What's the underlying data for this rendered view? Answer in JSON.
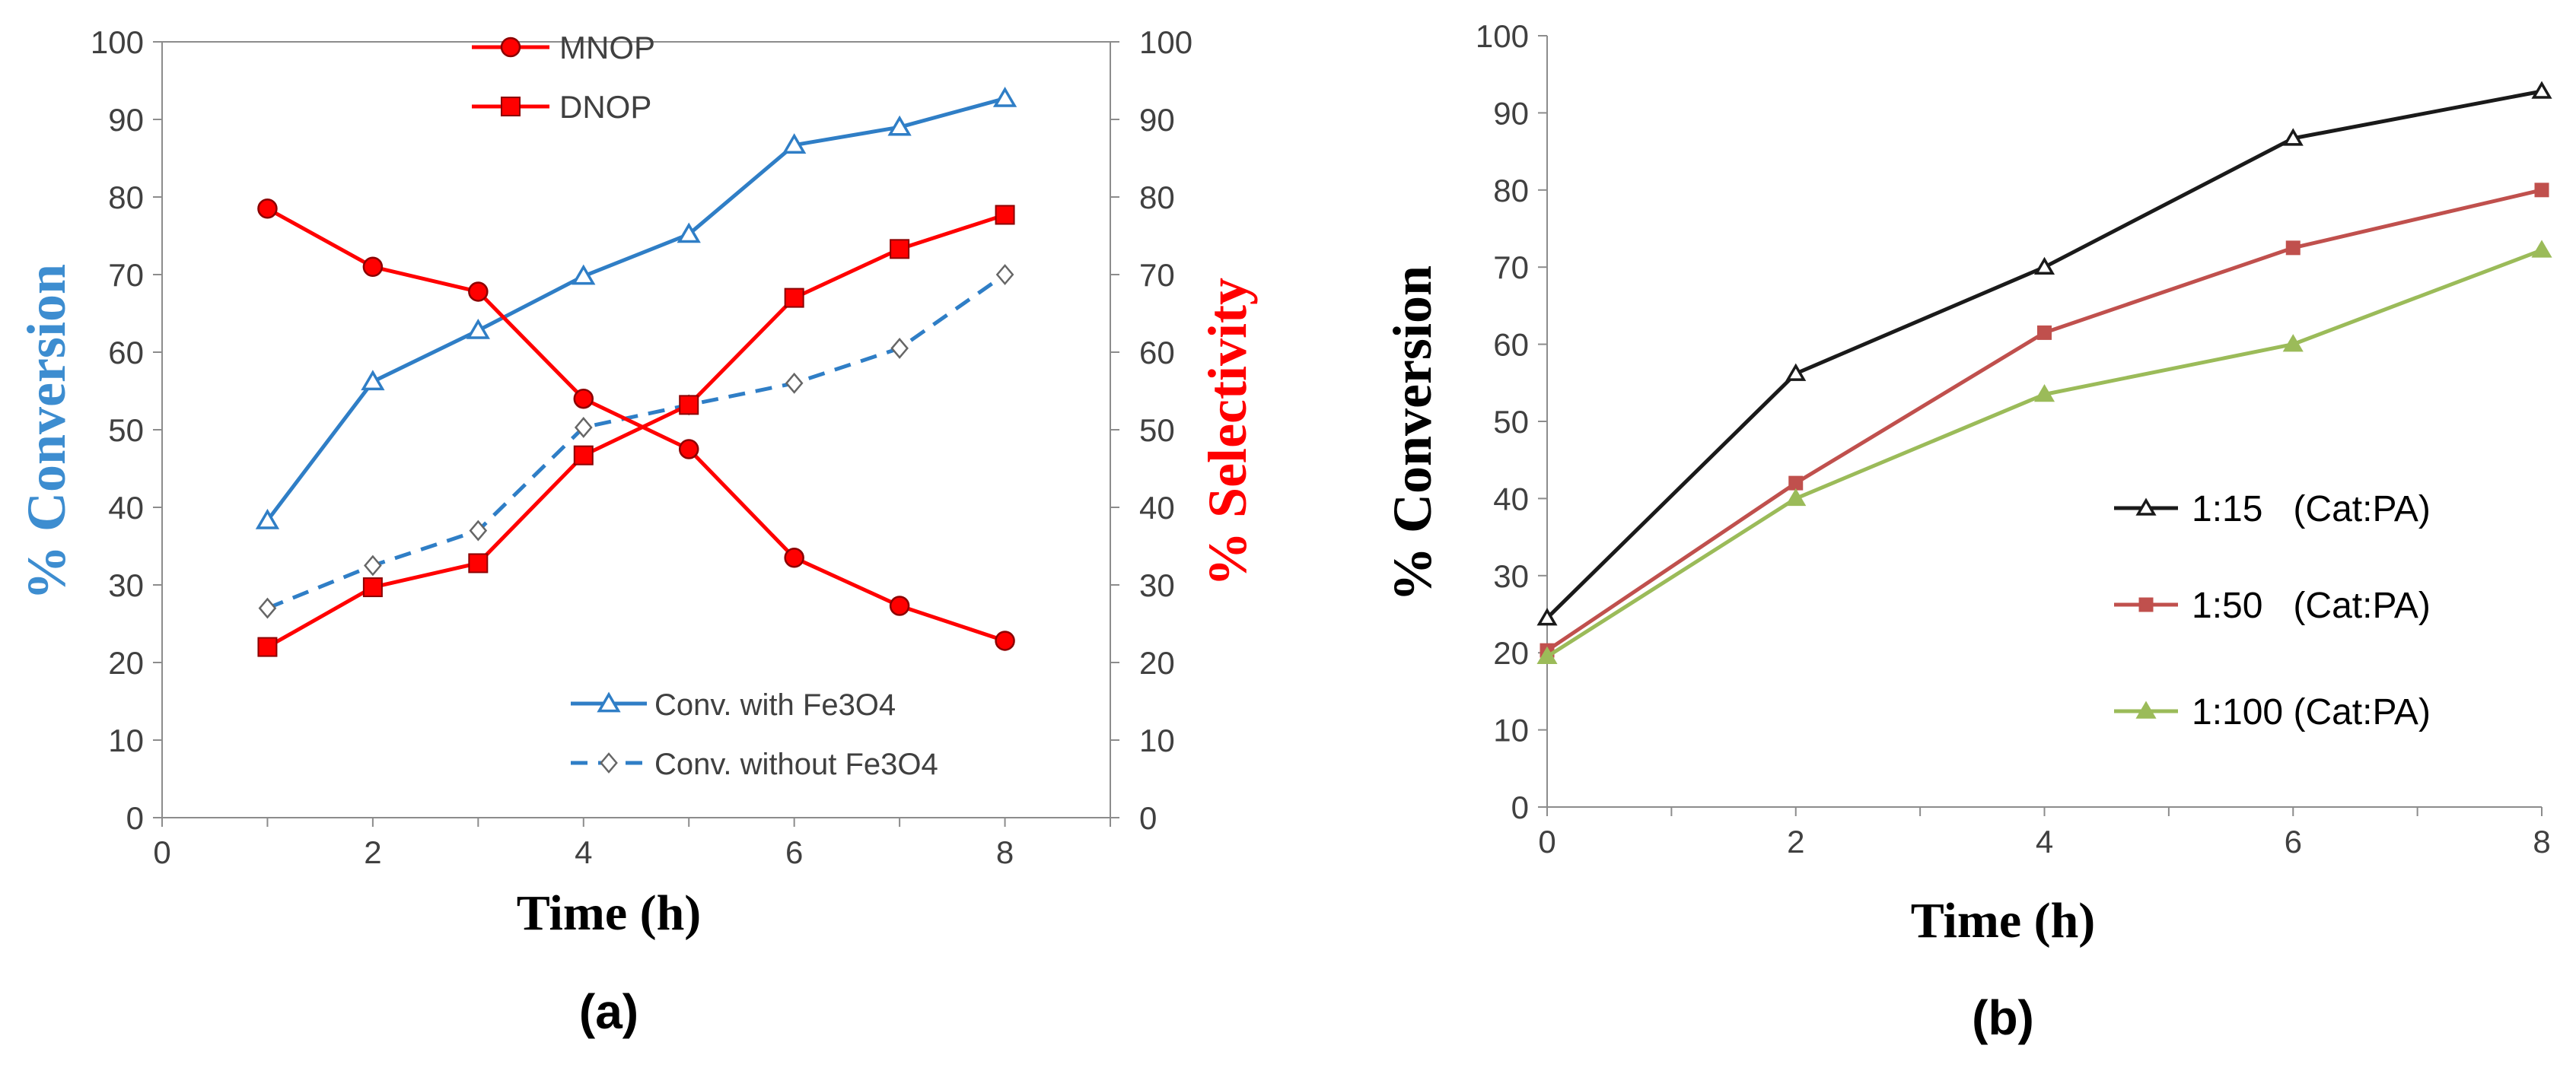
{
  "figure": {
    "panel_a_label": "(a)",
    "panel_b_label": "(b)"
  },
  "chart_data": [
    {
      "type": "line",
      "panel": "(a)",
      "title": "",
      "xlabel": "Time (h)",
      "ylabel": "% Conversion",
      "y2label": "% Selectivity",
      "xlim": [
        0,
        9
      ],
      "ylim": [
        0,
        100
      ],
      "y2lim": [
        0,
        100
      ],
      "xticks": [
        0,
        2,
        4,
        6,
        8
      ],
      "yticks": [
        0,
        10,
        20,
        30,
        40,
        50,
        60,
        70,
        80,
        90,
        100
      ],
      "grid": false,
      "ylabel_color": "#3D8DD0",
      "y2label_color": "#FF0000",
      "series": [
        {
          "name": "Conv. with Fe3O4",
          "axis": "left",
          "color": "#2F7EC6",
          "marker": "triangle-open",
          "dash": "solid",
          "legend": "bottom",
          "x": [
            1,
            2,
            3,
            4,
            5,
            6,
            7,
            8
          ],
          "y": [
            38.3,
            56.2,
            62.8,
            69.8,
            75.2,
            86.7,
            89.0,
            92.7
          ]
        },
        {
          "name": "Conv. without Fe3O4",
          "axis": "left",
          "color": "#2F7EC6",
          "marker": "diamond-open",
          "dash": "dashed",
          "legend": "bottom",
          "x": [
            1,
            2,
            3,
            4,
            5,
            6,
            7,
            8
          ],
          "y": [
            27.0,
            32.5,
            37.0,
            50.3,
            53.2,
            56.0,
            60.5,
            70.0
          ]
        },
        {
          "name": "MNOP",
          "axis": "right",
          "color": "#FF0000",
          "marker": "circle",
          "dash": "solid",
          "legend": "top",
          "x": [
            1,
            2,
            3,
            4,
            5,
            6,
            7,
            8
          ],
          "y": [
            78.5,
            71.0,
            67.8,
            54.0,
            47.5,
            33.5,
            27.3,
            22.8
          ]
        },
        {
          "name": "DNOP",
          "axis": "right",
          "color": "#FF0000",
          "marker": "square",
          "dash": "solid",
          "legend": "top",
          "x": [
            1,
            2,
            3,
            4,
            5,
            6,
            7,
            8
          ],
          "y": [
            22.0,
            29.7,
            32.8,
            46.7,
            53.2,
            67.0,
            73.3,
            77.7
          ]
        }
      ]
    },
    {
      "type": "line",
      "panel": "(b)",
      "title": "",
      "xlabel": "Time (h)",
      "ylabel": "% Conversion",
      "xlim": [
        0,
        8
      ],
      "ylim": [
        0,
        100
      ],
      "xticks": [
        0,
        2,
        4,
        6,
        8
      ],
      "yticks": [
        0,
        10,
        20,
        30,
        40,
        50,
        60,
        70,
        80,
        90,
        100
      ],
      "grid": false,
      "legend_position": "center-right",
      "series": [
        {
          "name": "1:15   (Cat:PA)",
          "color": "#1A1A1A",
          "marker": "triangle-open",
          "x": [
            0,
            2,
            4,
            6,
            8
          ],
          "y": [
            24.5,
            56.2,
            70.0,
            86.7,
            92.8
          ]
        },
        {
          "name": "1:50   (Cat:PA)",
          "color": "#C0504D",
          "marker": "square",
          "x": [
            0,
            2,
            4,
            6,
            8
          ],
          "y": [
            20.3,
            42.0,
            61.5,
            72.5,
            80.0
          ]
        },
        {
          "name": "1:100 (Cat:PA)",
          "color": "#9BBB59",
          "marker": "triangle",
          "x": [
            0,
            2,
            4,
            6,
            8
          ],
          "y": [
            19.5,
            40.0,
            53.5,
            60.0,
            72.2
          ]
        }
      ]
    }
  ]
}
